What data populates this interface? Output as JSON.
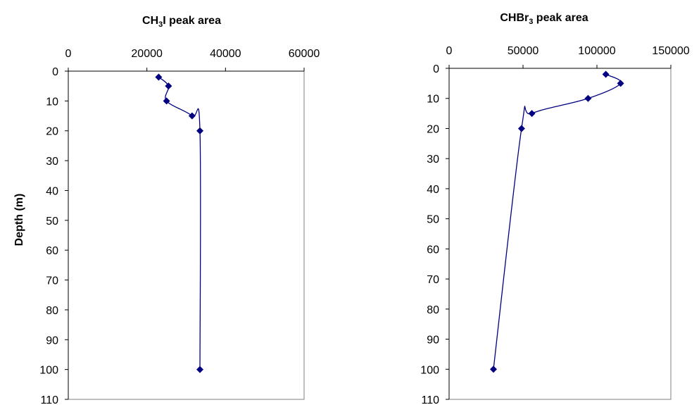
{
  "chart_data": [
    {
      "type": "scatter",
      "title_main": "CH",
      "title_sub": "3",
      "title_rest": "I peak area",
      "xlim": [
        0,
        60000
      ],
      "ylim": [
        0,
        110
      ],
      "xticks": [
        "0",
        "20000",
        "40000",
        "60000"
      ],
      "yticks": [
        "0",
        "10",
        "20",
        "30",
        "40",
        "50",
        "60",
        "70",
        "80",
        "90",
        "100",
        "110"
      ],
      "ylabel": "Depth (m)",
      "marker_color": "#000080",
      "line_color": "#000080",
      "series": [
        {
          "x": [
            23000,
            25500,
            25000,
            31500,
            33500,
            33500
          ],
          "y": [
            2,
            5,
            10,
            15,
            20,
            100
          ]
        }
      ]
    },
    {
      "type": "scatter",
      "title_main": "CHBr",
      "title_sub": "3",
      "title_rest": " peak area",
      "xlim": [
        0,
        150000
      ],
      "ylim": [
        0,
        110
      ],
      "xticks": [
        "0",
        "50000",
        "100000",
        "150000"
      ],
      "yticks": [
        "0",
        "10",
        "20",
        "30",
        "40",
        "50",
        "60",
        "70",
        "80",
        "90",
        "100",
        "110"
      ],
      "ylabel": "",
      "marker_color": "#000080",
      "line_color": "#000080",
      "series": [
        {
          "x": [
            106000,
            116000,
            94000,
            56000,
            49000,
            30000
          ],
          "y": [
            2,
            5,
            10,
            15,
            20,
            100
          ]
        }
      ]
    }
  ]
}
